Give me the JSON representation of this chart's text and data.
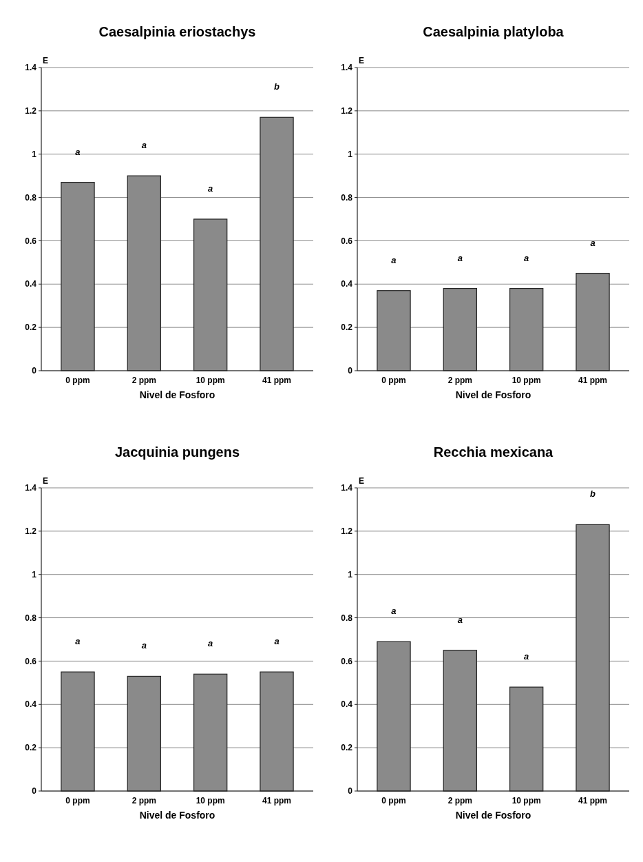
{
  "chart_data": [
    {
      "type": "bar",
      "title": "Caesalpinia eriostachys",
      "xlabel": "Nivel de Fosforo",
      "ylabel": "E",
      "categories": [
        "0 ppm",
        "2 ppm",
        "10 ppm",
        "41 ppm"
      ],
      "values": [
        0.87,
        0.9,
        0.7,
        1.17
      ],
      "color": "#8a8a8a",
      "ylim": [
        0,
        1.4
      ],
      "yticks": [
        0,
        0.2,
        0.4,
        0.6,
        0.8,
        1,
        1.2,
        1.4
      ],
      "grid": "y",
      "annotations": [
        "a",
        "a",
        "a",
        "b"
      ]
    },
    {
      "type": "bar",
      "title": "Caesalpinia platyloba",
      "xlabel": "Nivel de Fosforo",
      "ylabel": "E",
      "categories": [
        "0 ppm",
        "2 ppm",
        "10 ppm",
        "41 ppm"
      ],
      "values": [
        0.37,
        0.38,
        0.38,
        0.45
      ],
      "color": "#8a8a8a",
      "ylim": [
        0,
        1.4
      ],
      "yticks": [
        0,
        0.2,
        0.4,
        0.6,
        0.8,
        1,
        1.2,
        1.4
      ],
      "grid": "y",
      "annotations": [
        "a",
        "a",
        "a",
        "a"
      ]
    },
    {
      "type": "bar",
      "title": "Jacquinia pungens",
      "xlabel": "Nivel de Fosforo",
      "ylabel": "E",
      "categories": [
        "0 ppm",
        "2 ppm",
        "10 ppm",
        "41 ppm"
      ],
      "values": [
        0.55,
        0.53,
        0.54,
        0.55
      ],
      "color": "#8a8a8a",
      "ylim": [
        0,
        1.4
      ],
      "yticks": [
        0,
        0.2,
        0.4,
        0.6,
        0.8,
        1,
        1.2,
        1.4
      ],
      "grid": "y",
      "annotations": [
        "a",
        "a",
        "a",
        "a"
      ]
    },
    {
      "type": "bar",
      "title": "Recchia mexicana",
      "xlabel": "Nivel de Fosforo",
      "ylabel": "E",
      "categories": [
        "0 ppm",
        "2 ppm",
        "10 ppm",
        "41 ppm"
      ],
      "values": [
        0.69,
        0.65,
        0.48,
        1.23
      ],
      "color": "#8a8a8a",
      "ylim": [
        0,
        1.4
      ],
      "yticks": [
        0,
        0.2,
        0.4,
        0.6,
        0.8,
        1,
        1.2,
        1.4
      ],
      "grid": "y",
      "annotations": [
        "a",
        "a",
        "a",
        "b"
      ]
    }
  ]
}
